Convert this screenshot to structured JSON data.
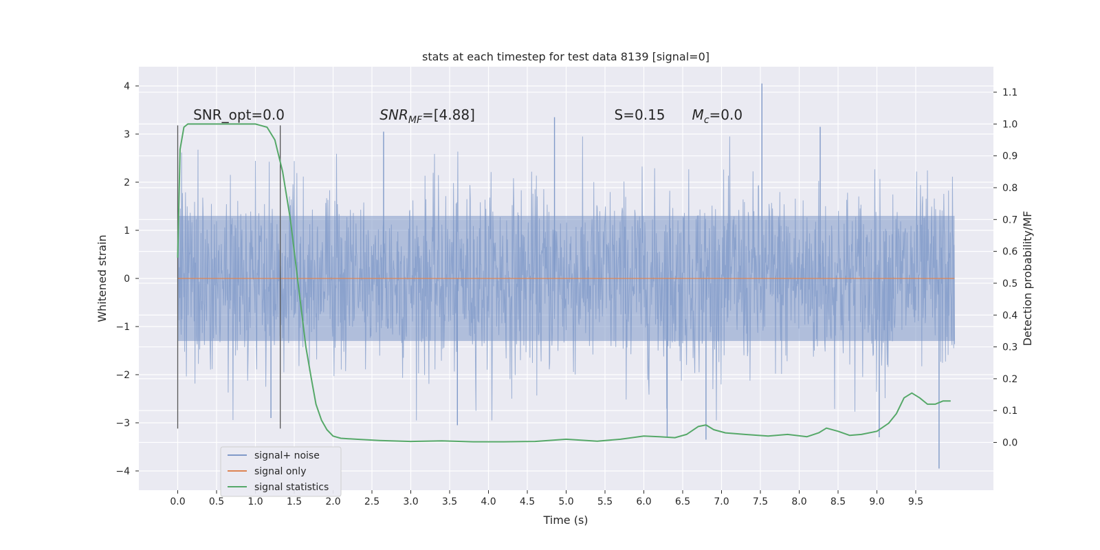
{
  "chart_data": {
    "type": "line",
    "title": "stats at each timestep for test data 8139 [signal=0]",
    "xlabel": "Time (s)",
    "ylabel": "Whitened strain",
    "ylabel_right": "Detection probability/MF",
    "xlim": [
      -0.5,
      10.5
    ],
    "ylim": [
      -4.4,
      4.4
    ],
    "ylim_right": [
      -0.15,
      1.18
    ],
    "x_ticks": [
      0.0,
      0.5,
      1.0,
      1.5,
      2.0,
      2.5,
      3.0,
      3.5,
      4.0,
      4.5,
      5.0,
      5.5,
      6.0,
      6.5,
      7.0,
      7.5,
      8.0,
      8.5,
      9.0,
      9.5
    ],
    "x_tick_labels": [
      "0.0",
      "0.5",
      "1.0",
      "1.5",
      "2.0",
      "2.5",
      "3.0",
      "3.5",
      "4.0",
      "4.5",
      "5.0",
      "5.5",
      "6.0",
      "6.5",
      "7.0",
      "7.5",
      "8.0",
      "8.5",
      "9.0",
      "9.5"
    ],
    "y_ticks": [
      -4,
      -3,
      -2,
      -1,
      0,
      1,
      2,
      3,
      4
    ],
    "y_tick_labels": [
      "−4",
      "−3",
      "−2",
      "−1",
      "0",
      "1",
      "2",
      "3",
      "4"
    ],
    "y_ticks_right": [
      0.0,
      0.1,
      0.2,
      0.3,
      0.4,
      0.5,
      0.6,
      0.7,
      0.8,
      0.9,
      1.0,
      1.1
    ],
    "y_tick_labels_right": [
      "0.0",
      "0.1",
      "0.2",
      "0.3",
      "0.4",
      "0.5",
      "0.6",
      "0.7",
      "0.8",
      "0.9",
      "1.0",
      "1.1"
    ],
    "grid": true,
    "legend_position": "lower-left",
    "colors": {
      "noise": "#7f99c8",
      "signal": "#dd8452",
      "stats": "#55a868",
      "vline": "#555555",
      "background": "#eaeaf2",
      "grid": "#ffffff"
    },
    "noise_band": {
      "x_start": 0.0,
      "x_end": 10.0,
      "typical_amplitude": 1.3,
      "peaks": [
        {
          "x": 4.85,
          "y": 3.35
        },
        {
          "x": 7.52,
          "y": 4.05
        },
        {
          "x": 8.27,
          "y": 3.15
        },
        {
          "x": 2.65,
          "y": 3.05
        },
        {
          "x": 6.3,
          "y": -3.3
        },
        {
          "x": 6.8,
          "y": -3.35
        },
        {
          "x": 9.8,
          "y": -3.95
        },
        {
          "x": 9.03,
          "y": -3.3
        },
        {
          "x": 3.6,
          "y": -3.05
        },
        {
          "x": 1.2,
          "y": -2.9
        }
      ]
    },
    "vlines": [
      {
        "x": 0.0,
        "y_range": [
          -3.12,
          3.18
        ]
      },
      {
        "x": 1.32,
        "y_range": [
          -3.12,
          3.18
        ]
      }
    ],
    "annotations": [
      {
        "text": "SNR_opt=0.0",
        "x": 0.2,
        "y": 3.3
      },
      {
        "text_main": "SNR",
        "text_sub": "MF",
        "text_rest": "=[4.88]",
        "x": 2.6,
        "y": 3.3
      },
      {
        "text": "S=0.15",
        "x": 5.62,
        "y": 3.3
      },
      {
        "text_main": "M",
        "text_sub": "c",
        "text_rest": "=0.0",
        "x": 6.62,
        "y": 3.3
      }
    ],
    "series": [
      {
        "name": "signal+ noise",
        "axis": "left",
        "style": "noise"
      },
      {
        "name": "signal only",
        "axis": "left",
        "x": [
          0.0,
          10.0
        ],
        "values": [
          0.0,
          0.0
        ]
      },
      {
        "name": "signal statistics",
        "axis": "right",
        "x": [
          0.0,
          0.03,
          0.08,
          0.13,
          0.2,
          0.3,
          0.5,
          0.8,
          1.0,
          1.15,
          1.25,
          1.35,
          1.45,
          1.55,
          1.65,
          1.72,
          1.78,
          1.85,
          1.92,
          2.0,
          2.1,
          2.3,
          2.6,
          3.0,
          3.4,
          3.8,
          4.2,
          4.6,
          5.0,
          5.4,
          5.7,
          6.0,
          6.2,
          6.4,
          6.55,
          6.7,
          6.8,
          6.9,
          7.05,
          7.3,
          7.6,
          7.85,
          8.1,
          8.25,
          8.35,
          8.5,
          8.65,
          8.8,
          9.0,
          9.15,
          9.25,
          9.35,
          9.45,
          9.55,
          9.65,
          9.75,
          9.85,
          9.95
        ],
        "values": [
          0.58,
          0.92,
          0.99,
          1.0,
          1.0,
          1.0,
          1.0,
          1.0,
          1.0,
          0.99,
          0.95,
          0.85,
          0.7,
          0.5,
          0.3,
          0.2,
          0.12,
          0.07,
          0.04,
          0.02,
          0.013,
          0.01,
          0.006,
          0.003,
          0.005,
          0.002,
          0.002,
          0.003,
          0.01,
          0.004,
          0.01,
          0.02,
          0.018,
          0.015,
          0.025,
          0.05,
          0.055,
          0.04,
          0.03,
          0.025,
          0.02,
          0.025,
          0.018,
          0.03,
          0.045,
          0.035,
          0.022,
          0.025,
          0.035,
          0.06,
          0.09,
          0.14,
          0.155,
          0.14,
          0.12,
          0.12,
          0.13,
          0.13
        ]
      }
    ]
  }
}
